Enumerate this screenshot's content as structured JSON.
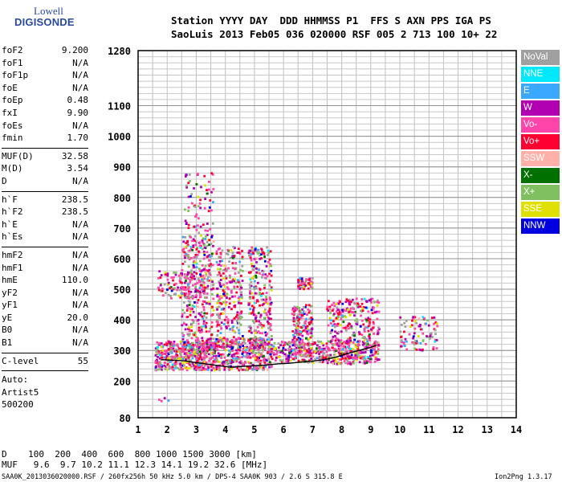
{
  "logo": {
    "line1": "Lowell",
    "line2": "DIGISONDE"
  },
  "header": {
    "line1": "Station YYYY DAY  DDD HHMMSS P1  FFS S AXN PPS IGA PS",
    "line2": "SaoLuis 2013 Feb05 036 020000 RSF 005 2 713 100 10+ 22"
  },
  "params": {
    "group1": [
      [
        "foF2",
        "9.200"
      ],
      [
        "foF1",
        "N/A"
      ],
      [
        "foF1p",
        "N/A"
      ],
      [
        "foE",
        "N/A"
      ],
      [
        "foEp",
        "0.48"
      ],
      [
        "fxI",
        "9.90"
      ],
      [
        "foEs",
        "N/A"
      ],
      [
        "fmin",
        "1.70"
      ]
    ],
    "group2": [
      [
        "MUF(D)",
        "32.58"
      ],
      [
        "M(D)",
        "3.54"
      ],
      [
        "D",
        "N/A"
      ]
    ],
    "group3": [
      [
        "h`F",
        "238.5"
      ],
      [
        "h`F2",
        "238.5"
      ],
      [
        "h`E",
        "N/A"
      ],
      [
        "h`Es",
        "N/A"
      ]
    ],
    "group4": [
      [
        "hmF2",
        "N/A"
      ],
      [
        "hmF1",
        "N/A"
      ],
      [
        "hmE",
        "110.0"
      ],
      [
        "yF2",
        "N/A"
      ],
      [
        "yF1",
        "N/A"
      ],
      [
        "yE",
        "20.0"
      ],
      [
        "B0",
        "N/A"
      ],
      [
        "B1",
        "N/A"
      ]
    ],
    "group5": [
      [
        "C-level",
        "55"
      ]
    ],
    "auto": [
      "Auto:",
      "Artist5",
      "500200"
    ]
  },
  "legend": [
    {
      "label": "NoVal",
      "color": "#a0a0a0"
    },
    {
      "label": "NNE",
      "color": "#00e8ff"
    },
    {
      "label": "E",
      "color": "#3aa8ff"
    },
    {
      "label": "W",
      "color": "#b000b0"
    },
    {
      "label": "Vo-",
      "color": "#ff44aa"
    },
    {
      "label": "Vo+",
      "color": "#ff0033"
    },
    {
      "label": "SSW",
      "color": "#ffb0a8"
    },
    {
      "label": "X-",
      "color": "#007000"
    },
    {
      "label": "X+",
      "color": "#80c060"
    },
    {
      "label": "SSE",
      "color": "#e0e000"
    },
    {
      "label": "NNW",
      "color": "#0000e0"
    }
  ],
  "bottom": {
    "line1": "D    100  200  400  600  800 1000 1500 3000 [km]",
    "line2": "MUF   9.6  9.7 10.2 11.1 12.3 14.1 19.2 32.6 [MHz]"
  },
  "footer": {
    "left": "SAA0K_2013036020000.RSF / 260fx256h 50 kHz 5.0 km / DPS-4 SAA0K 903 / 2.6 S 315.8 E",
    "right": "Ion2Png 1.3.17"
  },
  "chart_data": {
    "type": "scatter",
    "x_ticks": [
      1,
      2,
      3,
      4,
      5,
      6,
      7,
      8,
      9,
      10,
      11,
      12,
      13,
      14
    ],
    "y_ticks": [
      80,
      200,
      300,
      400,
      500,
      600,
      700,
      800,
      900,
      1000,
      1100,
      1280
    ],
    "xlim": [
      1,
      14
    ],
    "ylim": [
      80,
      1280
    ],
    "grid": true,
    "trace": {
      "x": [
        1.8,
        2.2,
        2.6,
        3.0,
        3.4,
        3.8,
        4.2,
        4.6,
        5.0,
        5.4,
        5.8,
        6.2,
        6.6,
        7.0,
        7.4,
        7.8,
        8.2,
        8.6,
        9.0,
        9.2
      ],
      "y": [
        270,
        268,
        266,
        260,
        255,
        250,
        245,
        248,
        250,
        252,
        256,
        258,
        262,
        265,
        270,
        278,
        290,
        300,
        310,
        318
      ]
    },
    "clusters": [
      {
        "x": [
          1.6,
          3.4
        ],
        "y": [
          235,
          330
        ],
        "n": 420
      },
      {
        "x": [
          3.4,
          5.6
        ],
        "y": [
          235,
          340
        ],
        "n": 420
      },
      {
        "x": [
          5.6,
          9.3
        ],
        "y": [
          255,
          330
        ],
        "n": 360
      },
      {
        "x": [
          2.5,
          3.6
        ],
        "y": [
          300,
          680
        ],
        "n": 340
      },
      {
        "x": [
          3.7,
          4.6
        ],
        "y": [
          300,
          640
        ],
        "n": 260
      },
      {
        "x": [
          4.8,
          5.6
        ],
        "y": [
          300,
          640
        ],
        "n": 260
      },
      {
        "x": [
          6.3,
          7.0
        ],
        "y": [
          280,
          450
        ],
        "n": 200
      },
      {
        "x": [
          7.5,
          9.3
        ],
        "y": [
          270,
          470
        ],
        "n": 320
      },
      {
        "x": [
          1.7,
          3.3
        ],
        "y": [
          470,
          560
        ],
        "n": 120
      },
      {
        "x": [
          2.6,
          3.6
        ],
        "y": [
          600,
          880
        ],
        "n": 90
      },
      {
        "x": [
          10.0,
          11.3
        ],
        "y": [
          300,
          410
        ],
        "n": 90
      },
      {
        "x": [
          6.5,
          7.0
        ],
        "y": [
          500,
          540
        ],
        "n": 60
      },
      {
        "x": [
          1.7,
          2.1
        ],
        "y": [
          130,
          145
        ],
        "n": 4
      }
    ]
  }
}
